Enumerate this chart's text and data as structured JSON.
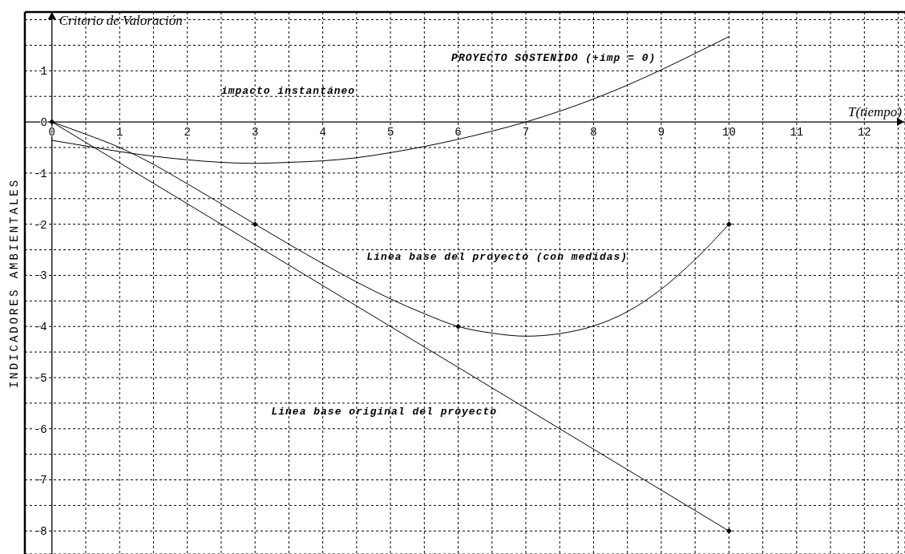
{
  "chart_data": {
    "type": "line",
    "xlabel": "T(tiempo)",
    "ylabel": "INDICADORES AMBIENTALES",
    "annotations": [
      "Criterio de Valoración",
      "impacto instantáneo"
    ],
    "xlim": [
      -0.4,
      12.6
    ],
    "ylim": [
      -8.45,
      2.15
    ],
    "xticks": [
      0,
      {
        "value": 0.5,
        "label": null
      },
      1,
      {
        "value": 1.5,
        "label": null
      },
      2,
      {
        "value": 2.5,
        "label": null
      },
      3,
      {
        "value": 3.5,
        "label": null
      },
      4,
      {
        "value": 4.5,
        "label": null
      },
      5,
      {
        "value": 5.5,
        "label": null
      },
      6,
      {
        "value": 6.5,
        "label": null
      },
      7,
      {
        "value": 7.5,
        "label": null
      },
      8,
      {
        "value": 8.5,
        "label": null
      },
      9,
      {
        "value": 9.5,
        "label": null
      },
      10,
      {
        "value": 10.5,
        "label": null
      },
      11,
      {
        "value": 11.5,
        "label": null
      },
      12,
      {
        "value": 12.5,
        "label": null
      }
    ],
    "yticks": [
      -8,
      {
        "value": -7.5,
        "label": null
      },
      -7,
      {
        "value": -6.5,
        "label": null
      },
      -6,
      {
        "value": -5.5,
        "label": null
      },
      -5,
      {
        "value": -4.5,
        "label": null
      },
      -4,
      {
        "value": -3.5,
        "label": null
      },
      -3,
      {
        "value": -2.5,
        "label": null
      },
      -2,
      {
        "value": -1.5,
        "label": null
      },
      -1,
      {
        "value": -0.5,
        "label": null
      },
      0,
      {
        "value": 0.5,
        "label": null
      },
      1,
      {
        "value": 1.5,
        "label": null
      },
      {
        "value": 2,
        "label": null
      }
    ],
    "grid": true,
    "series": [
      {
        "name": "Linea base original del proyecto",
        "color": "#000000",
        "marker": "none",
        "x": [
          0,
          10
        ],
        "values": [
          0,
          -8
        ]
      },
      {
        "name": "Linea base del proyecto (con medidas)",
        "color": "#000000",
        "marker": "none",
        "x": [
          0,
          0.5,
          1,
          1.5,
          2,
          2.5,
          3,
          3.5,
          4,
          4.5,
          5,
          5.5,
          6,
          6.5,
          7,
          7.5,
          8,
          8.5,
          9,
          9.5,
          10
        ],
        "values": [
          0,
          -0.24,
          -0.5,
          -0.83,
          -1.21,
          -1.6,
          -2,
          -2.39,
          -2.77,
          -3.13,
          -3.46,
          -3.75,
          -4,
          -4.13,
          -4.19,
          -4.14,
          -3.99,
          -3.71,
          -3.27,
          -2.69,
          -2
        ]
      },
      {
        "name": "PROYECTO SOSTENIDO (+imp = 0)",
        "color": "#000000",
        "marker": "none",
        "x": [
          0,
          0.5,
          1,
          1.5,
          2,
          2.5,
          3,
          3.5,
          4,
          4.5,
          5,
          5.5,
          6,
          6.5,
          7,
          7.5,
          8,
          8.5,
          9,
          9.5,
          10
        ],
        "values": [
          -0.36,
          -0.47,
          -0.58,
          -0.67,
          -0.74,
          -0.79,
          -0.81,
          -0.79,
          -0.76,
          -0.7,
          -0.6,
          -0.48,
          -0.34,
          -0.18,
          0,
          0.21,
          0.45,
          0.72,
          1.02,
          1.34,
          1.67
        ]
      },
      {
        "type": "scatter",
        "color": "#000000",
        "marker": "diamond",
        "x": [
          0,
          3,
          6,
          10,
          10
        ],
        "values": [
          0,
          -2,
          -4,
          -2,
          -8
        ]
      }
    ]
  }
}
